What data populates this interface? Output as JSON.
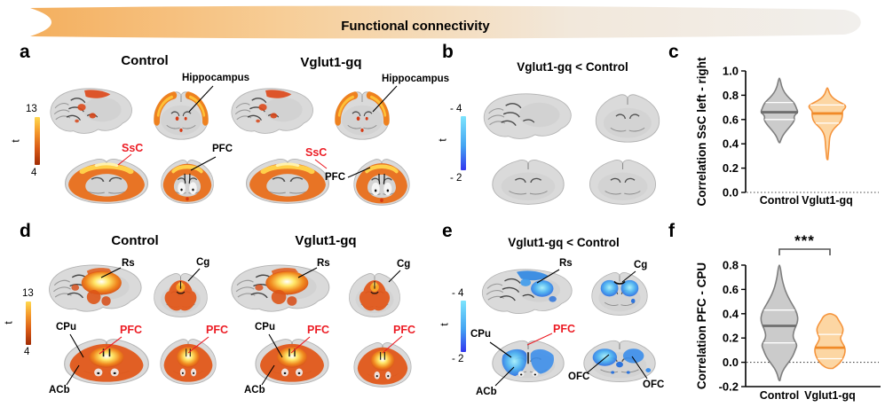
{
  "banner": {
    "title": "Functional connectivity"
  },
  "panels": {
    "a": {
      "letter": "a",
      "group1_title": "Control",
      "group2_title": "Vglut1-gq",
      "colorbar": {
        "axis_label": "t",
        "max": "13",
        "min": "4"
      },
      "labels": {
        "hippocampus": "Hippocampus",
        "ssc": "SsC",
        "pfc": "PFC"
      }
    },
    "b": {
      "letter": "b",
      "title": "Vglut1-gq < Control",
      "colorbar": {
        "axis_label": "t",
        "max": "- 4",
        "min": "- 2"
      }
    },
    "c": {
      "letter": "c"
    },
    "d": {
      "letter": "d",
      "group1_title": "Control",
      "group2_title": "Vglut1-gq",
      "colorbar": {
        "axis_label": "t",
        "max": "13",
        "min": "4"
      },
      "labels": {
        "rs": "Rs",
        "cg": "Cg",
        "cpu": "CPu",
        "pfc": "PFC",
        "acb": "ACb"
      }
    },
    "e": {
      "letter": "e",
      "title": "Vglut1-gq < Control",
      "colorbar": {
        "axis_label": "t",
        "max": "- 4",
        "min": "- 2"
      },
      "labels": {
        "rs": "Rs",
        "cg": "Cg",
        "cpu": "CPu",
        "pfc": "PFC",
        "acb": "ACb",
        "ofc": "OFC"
      }
    },
    "f": {
      "letter": "f",
      "significance": "***"
    }
  },
  "colors": {
    "label_red": "#EC1C24",
    "violin_gray_fill": "#CBCBCB",
    "violin_gray_stroke": "#7F7F7F",
    "violin_orange_fill": "#FCD6A3",
    "violin_orange_stroke": "#F5953E",
    "hot_bar_low": "#A02C05",
    "hot_bar_high": "#FFD84E",
    "cool_bar_low": "#3136EF",
    "cool_bar_high": "#7CE4FD"
  },
  "chart_data": [
    {
      "panel": "c",
      "type": "violin",
      "ylabel": "Correlation SsC left - right",
      "ylim": [
        0.0,
        1.0
      ],
      "yticks": [
        0.0,
        0.2,
        0.4,
        0.6,
        0.8,
        1.0
      ],
      "categories": [
        "Control",
        "Vglut1-gq"
      ],
      "baseline": {
        "value": 0.0,
        "style": "dotted"
      },
      "series": [
        {
          "name": "Control",
          "fill": "#CBCBCB",
          "stroke": "#7F7F7F",
          "median_stroke": "#6F6F6F",
          "min": 0.41,
          "q1": 0.6,
          "median": 0.66,
          "q3": 0.74,
          "max": 0.94,
          "outline": [
            [
              0.41,
              0.03
            ],
            [
              0.45,
              0.12
            ],
            [
              0.49,
              0.28
            ],
            [
              0.53,
              0.5
            ],
            [
              0.57,
              0.72
            ],
            [
              0.6,
              0.82
            ],
            [
              0.62,
              0.78
            ],
            [
              0.64,
              0.85
            ],
            [
              0.66,
              1.0
            ],
            [
              0.69,
              0.92
            ],
            [
              0.72,
              0.85
            ],
            [
              0.75,
              0.72
            ],
            [
              0.78,
              0.5
            ],
            [
              0.82,
              0.28
            ],
            [
              0.87,
              0.12
            ],
            [
              0.94,
              0.03
            ]
          ]
        },
        {
          "name": "Vglut1-gq",
          "fill": "#FCD6A3",
          "stroke": "#F5953E",
          "median_stroke": "#F08A28",
          "min": 0.27,
          "q1": 0.57,
          "median": 0.65,
          "q3": 0.72,
          "max": 0.86,
          "outline": [
            [
              0.27,
              0.03
            ],
            [
              0.33,
              0.06
            ],
            [
              0.39,
              0.1
            ],
            [
              0.45,
              0.12
            ],
            [
              0.49,
              0.2
            ],
            [
              0.53,
              0.38
            ],
            [
              0.56,
              0.6
            ],
            [
              0.59,
              0.75
            ],
            [
              0.62,
              0.8
            ],
            [
              0.645,
              0.82
            ],
            [
              0.67,
              0.8
            ],
            [
              0.7,
              1.0
            ],
            [
              0.72,
              0.95
            ],
            [
              0.74,
              0.7
            ],
            [
              0.77,
              0.35
            ],
            [
              0.81,
              0.12
            ],
            [
              0.86,
              0.03
            ]
          ]
        }
      ]
    },
    {
      "panel": "f",
      "type": "violin",
      "ylabel": "Correlation PFC - CPU",
      "ylim": [
        -0.2,
        0.8
      ],
      "yticks": [
        -0.2,
        0.0,
        0.2,
        0.4,
        0.6,
        0.8
      ],
      "categories": [
        "Control",
        "Vglut1-gq"
      ],
      "baseline": {
        "value": 0.0,
        "style": "dotted"
      },
      "x_axis_line": true,
      "significance": "***",
      "series": [
        {
          "name": "Control",
          "fill": "#CBCBCB",
          "stroke": "#7F7F7F",
          "median_stroke": "#6F6F6F",
          "min": -0.15,
          "q1": 0.16,
          "median": 0.3,
          "q3": 0.43,
          "max": 0.8,
          "outline": [
            [
              -0.15,
              0.03
            ],
            [
              -0.1,
              0.1
            ],
            [
              -0.05,
              0.25
            ],
            [
              0.0,
              0.5
            ],
            [
              0.05,
              0.72
            ],
            [
              0.1,
              0.85
            ],
            [
              0.14,
              0.95
            ],
            [
              0.17,
              0.85
            ],
            [
              0.21,
              0.72
            ],
            [
              0.26,
              0.78
            ],
            [
              0.3,
              0.9
            ],
            [
              0.35,
              1.0
            ],
            [
              0.4,
              0.95
            ],
            [
              0.45,
              0.8
            ],
            [
              0.5,
              0.6
            ],
            [
              0.56,
              0.4
            ],
            [
              0.62,
              0.25
            ],
            [
              0.7,
              0.12
            ],
            [
              0.8,
              0.04
            ]
          ]
        },
        {
          "name": "Vglut1-gq",
          "fill": "#FCD6A3",
          "stroke": "#F5953E",
          "median_stroke": "#F08A28",
          "min": -0.05,
          "q1": 0.03,
          "median": 0.12,
          "q3": 0.23,
          "max": 0.4,
          "outline": [
            [
              -0.05,
              0.15
            ],
            [
              -0.02,
              0.45
            ],
            [
              0.02,
              0.65
            ],
            [
              0.06,
              0.78
            ],
            [
              0.1,
              0.82
            ],
            [
              0.13,
              0.78
            ],
            [
              0.17,
              0.62
            ],
            [
              0.2,
              0.55
            ],
            [
              0.23,
              0.65
            ],
            [
              0.27,
              0.72
            ],
            [
              0.31,
              0.62
            ],
            [
              0.35,
              0.45
            ],
            [
              0.38,
              0.35
            ],
            [
              0.4,
              0.1
            ]
          ]
        }
      ]
    }
  ]
}
